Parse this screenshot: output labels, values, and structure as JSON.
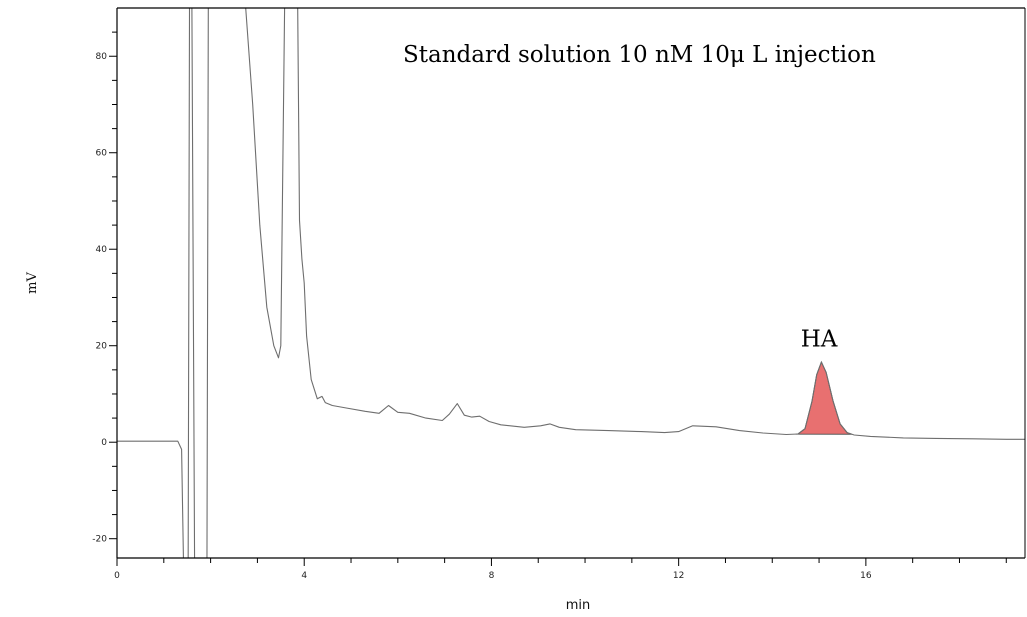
{
  "chart_data": {
    "type": "line",
    "title": "Standard solution 10 nM 10μ L injection",
    "xlabel": "min",
    "ylabel": "mV",
    "xlim": [
      0,
      19.4
    ],
    "ylim": [
      -24,
      90
    ],
    "x_ticks": [
      0,
      4,
      8,
      12,
      16
    ],
    "y_ticks": [
      -20,
      0,
      20,
      40,
      60,
      80
    ],
    "grid": false,
    "annotations": [
      {
        "text": "HA",
        "x": 15.0,
        "y": 21.5
      }
    ],
    "highlighted_peak": {
      "name": "HA",
      "x_start": 14.5,
      "x_end": 15.7,
      "color": "#e87070"
    },
    "series": [
      {
        "line_color": "#6e6e6e",
        "x": [
          0.0,
          0.5,
          1.0,
          1.3,
          1.38,
          1.43,
          1.47,
          1.52,
          1.55,
          1.57,
          1.6,
          1.66,
          1.72,
          1.78,
          1.84,
          1.88,
          1.92,
          1.95,
          2.0,
          2.05,
          2.1,
          2.2,
          2.35,
          2.5,
          2.7,
          2.75,
          2.9,
          3.05,
          3.2,
          3.35,
          3.45,
          3.5,
          3.58,
          3.65,
          3.7,
          3.75,
          3.8,
          3.86,
          3.9,
          3.95,
          4.0,
          4.05,
          4.15,
          4.28,
          4.38,
          4.45,
          4.6,
          4.9,
          5.3,
          5.6,
          5.8,
          6.0,
          6.25,
          6.6,
          6.95,
          7.1,
          7.27,
          7.42,
          7.58,
          7.75,
          7.95,
          8.2,
          8.7,
          9.05,
          9.25,
          9.45,
          9.8,
          10.5,
          11.2,
          11.7,
          12.0,
          12.3,
          12.8,
          13.3,
          13.8,
          14.3,
          14.55,
          14.7,
          14.85,
          14.95,
          15.05,
          15.15,
          15.3,
          15.45,
          15.6,
          15.75,
          16.1,
          16.8,
          17.5,
          18.3,
          19.0,
          19.4
        ],
        "y": [
          0.2,
          0.2,
          0.2,
          0.2,
          -1.5,
          -30,
          -30,
          -30,
          90,
          90,
          90,
          -30,
          -30,
          -30,
          -30,
          -30,
          -30,
          90,
          90,
          90,
          90,
          90,
          90,
          90,
          90,
          90,
          70,
          45,
          28,
          20,
          17.5,
          20,
          90,
          90,
          90,
          90,
          90,
          90,
          46,
          38,
          33,
          22,
          13,
          9,
          9.5,
          8.2,
          7.6,
          7.1,
          6.4,
          6.0,
          7.6,
          6.2,
          6.0,
          5.0,
          4.5,
          5.8,
          8.0,
          5.6,
          5.2,
          5.4,
          4.3,
          3.6,
          3.1,
          3.4,
          3.8,
          3.1,
          2.6,
          2.4,
          2.2,
          2.0,
          2.2,
          3.4,
          3.2,
          2.4,
          1.9,
          1.6,
          1.7,
          2.8,
          8.5,
          14.0,
          16.6,
          14.5,
          8.5,
          3.8,
          2.0,
          1.5,
          1.2,
          0.9,
          0.8,
          0.7,
          0.6,
          0.6
        ]
      }
    ]
  }
}
